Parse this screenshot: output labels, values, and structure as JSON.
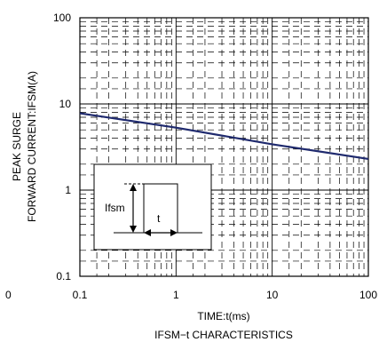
{
  "chart_data": {
    "type": "line",
    "title": "IFSM−t CHARACTERISTICS",
    "xlabel": "TIME:t(ms)",
    "ylabel_line1": "PEAK SURGE",
    "ylabel_line2": "FORWARD CURRENT:IFSM(A)",
    "x_scale": "log",
    "y_scale": "log",
    "xlim": [
      0.1,
      100
    ],
    "ylim": [
      0.1,
      100
    ],
    "x_ticks": [
      "0.1",
      "1",
      "10",
      "100"
    ],
    "y_ticks": [
      "0.1",
      "1",
      "10",
      "100"
    ],
    "x_stray_label": "0",
    "grid": true,
    "series": [
      {
        "color": "#1f2a6e",
        "x": [
          0.1,
          1,
          10,
          100
        ],
        "y": [
          7.8,
          5.3,
          3.4,
          2.3
        ]
      }
    ],
    "inset": {
      "ifsm_label": "Ifsm",
      "t_label": "t"
    }
  }
}
